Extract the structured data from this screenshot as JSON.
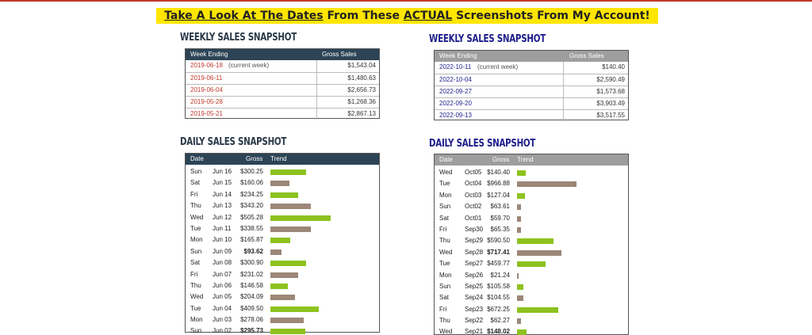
{
  "banner": {
    "part1": "Take A Look At The Dates",
    "part2": " From These ",
    "part3": "ACTUAL",
    "part4": " Screenshots From My Account!"
  },
  "weekly_2019": {
    "title": "WEEKLY SALES SNAPSHOT",
    "col_week": "Week Ending",
    "col_gross": "Gross Sales",
    "rows": [
      {
        "date": "2019-06-18",
        "note": "(current week)",
        "amount": "$1,543.04"
      },
      {
        "date": "2019-06-11",
        "note": "",
        "amount": "$1,480.63"
      },
      {
        "date": "2019-06-04",
        "note": "",
        "amount": "$2,656.73"
      },
      {
        "date": "2019-05-28",
        "note": "",
        "amount": "$1,268.36"
      },
      {
        "date": "2019-05-21",
        "note": "",
        "amount": "$2,867.13"
      }
    ]
  },
  "weekly_2022": {
    "title": "WEEKLY SALES SNAPSHOT",
    "col_week": "Week Ending",
    "col_gross": "Gross Sales",
    "rows": [
      {
        "date": "2022-10-11",
        "note": "(current week)",
        "amount": "$140.40"
      },
      {
        "date": "2022-10-04",
        "note": "",
        "amount": "$2,590.49"
      },
      {
        "date": "2022-09-27",
        "note": "",
        "amount": "$1,573.68"
      },
      {
        "date": "2022-09-20",
        "note": "",
        "amount": "$3,903.49"
      },
      {
        "date": "2022-09-13",
        "note": "",
        "amount": "$3,517.55"
      }
    ]
  },
  "daily_2019": {
    "title": "DAILY SALES SNAPSHOT",
    "col_date": "Date",
    "col_gross": "Gross",
    "col_trend": "Trend",
    "colors": {
      "up": "#8dc21f",
      "down": "#9c8778"
    },
    "rows": [
      {
        "day": "Sun",
        "date": "Jun 16",
        "gross": "$300.25",
        "value": 300.25,
        "trend": "up",
        "bold": false
      },
      {
        "day": "Sat",
        "date": "Jun 15",
        "gross": "$160.06",
        "value": 160.06,
        "trend": "down",
        "bold": false
      },
      {
        "day": "Fri",
        "date": "Jun 14",
        "gross": "$234.25",
        "value": 234.25,
        "trend": "up",
        "bold": false
      },
      {
        "day": "Thu",
        "date": "Jun 13",
        "gross": "$343.20",
        "value": 343.2,
        "trend": "down",
        "bold": false
      },
      {
        "day": "Wed",
        "date": "Jun 12",
        "gross": "$505.28",
        "value": 505.28,
        "trend": "up",
        "bold": false
      },
      {
        "day": "Tue",
        "date": "Jun 11",
        "gross": "$338.55",
        "value": 338.55,
        "trend": "down",
        "bold": false
      },
      {
        "day": "Mon",
        "date": "Jun 10",
        "gross": "$165.87",
        "value": 165.87,
        "trend": "up",
        "bold": false
      },
      {
        "day": "Sun",
        "date": "Jun 09",
        "gross": "$93.62",
        "value": 93.62,
        "trend": "down",
        "bold": true
      },
      {
        "day": "Sat",
        "date": "Jun 08",
        "gross": "$300.90",
        "value": 300.9,
        "trend": "up",
        "bold": false
      },
      {
        "day": "Fri",
        "date": "Jun 07",
        "gross": "$231.02",
        "value": 231.02,
        "trend": "down",
        "bold": false
      },
      {
        "day": "Thu",
        "date": "Jun 06",
        "gross": "$146.58",
        "value": 146.58,
        "trend": "up",
        "bold": false
      },
      {
        "day": "Wed",
        "date": "Jun 05",
        "gross": "$204.09",
        "value": 204.09,
        "trend": "down",
        "bold": false
      },
      {
        "day": "Tue",
        "date": "Jun 04",
        "gross": "$409.50",
        "value": 409.5,
        "trend": "up",
        "bold": false
      },
      {
        "day": "Mon",
        "date": "Jun 03",
        "gross": "$278.06",
        "value": 278.06,
        "trend": "down",
        "bold": false
      },
      {
        "day": "Sun",
        "date": "Jun 02",
        "gross": "$295.73",
        "value": 295.73,
        "trend": "up",
        "bold": true
      }
    ]
  },
  "daily_2022": {
    "title": "DAILY SALES SNAPSHOT",
    "col_date": "Date",
    "col_gross": "Gross",
    "col_trend": "Trend",
    "colors": {
      "up": "#8dc21f",
      "down": "#9c8778"
    },
    "rows": [
      {
        "day": "Wed",
        "date": "Oct05",
        "gross": "$140.40",
        "value": 140.4,
        "trend": "up",
        "bold": false
      },
      {
        "day": "Tue",
        "date": "Oct04",
        "gross": "$966.88",
        "value": 966.88,
        "trend": "down",
        "bold": false
      },
      {
        "day": "Mon",
        "date": "Oct03",
        "gross": "$127.04",
        "value": 127.04,
        "trend": "up",
        "bold": false
      },
      {
        "day": "Sun",
        "date": "Oct02",
        "gross": "$63.61",
        "value": 63.61,
        "trend": "down",
        "bold": false
      },
      {
        "day": "Sat",
        "date": "Oct01",
        "gross": "$59.70",
        "value": 59.7,
        "trend": "down",
        "bold": false
      },
      {
        "day": "Fri",
        "date": "Sep30",
        "gross": "$65.35",
        "value": 65.35,
        "trend": "down",
        "bold": false
      },
      {
        "day": "Thu",
        "date": "Sep29",
        "gross": "$590.50",
        "value": 590.5,
        "trend": "up",
        "bold": false
      },
      {
        "day": "Wed",
        "date": "Sep28",
        "gross": "$717.41",
        "value": 717.41,
        "trend": "down",
        "bold": true
      },
      {
        "day": "Tue",
        "date": "Sep27",
        "gross": "$459.77",
        "value": 459.77,
        "trend": "up",
        "bold": false
      },
      {
        "day": "Mon",
        "date": "Sep26",
        "gross": "$21.24",
        "value": 21.24,
        "trend": "down",
        "bold": false
      },
      {
        "day": "Sun",
        "date": "Sep25",
        "gross": "$105.58",
        "value": 105.58,
        "trend": "up",
        "bold": false
      },
      {
        "day": "Sat",
        "date": "Sep24",
        "gross": "$104.55",
        "value": 104.55,
        "trend": "down",
        "bold": false
      },
      {
        "day": "Fri",
        "date": "Sep23",
        "gross": "$672.25",
        "value": 672.25,
        "trend": "up",
        "bold": false
      },
      {
        "day": "Thu",
        "date": "Sep22",
        "gross": "$62.27",
        "value": 62.27,
        "trend": "down",
        "bold": false
      },
      {
        "day": "Wed",
        "date": "Sep21",
        "gross": "$148.02",
        "value": 148.02,
        "trend": "up",
        "bold": true
      }
    ]
  }
}
